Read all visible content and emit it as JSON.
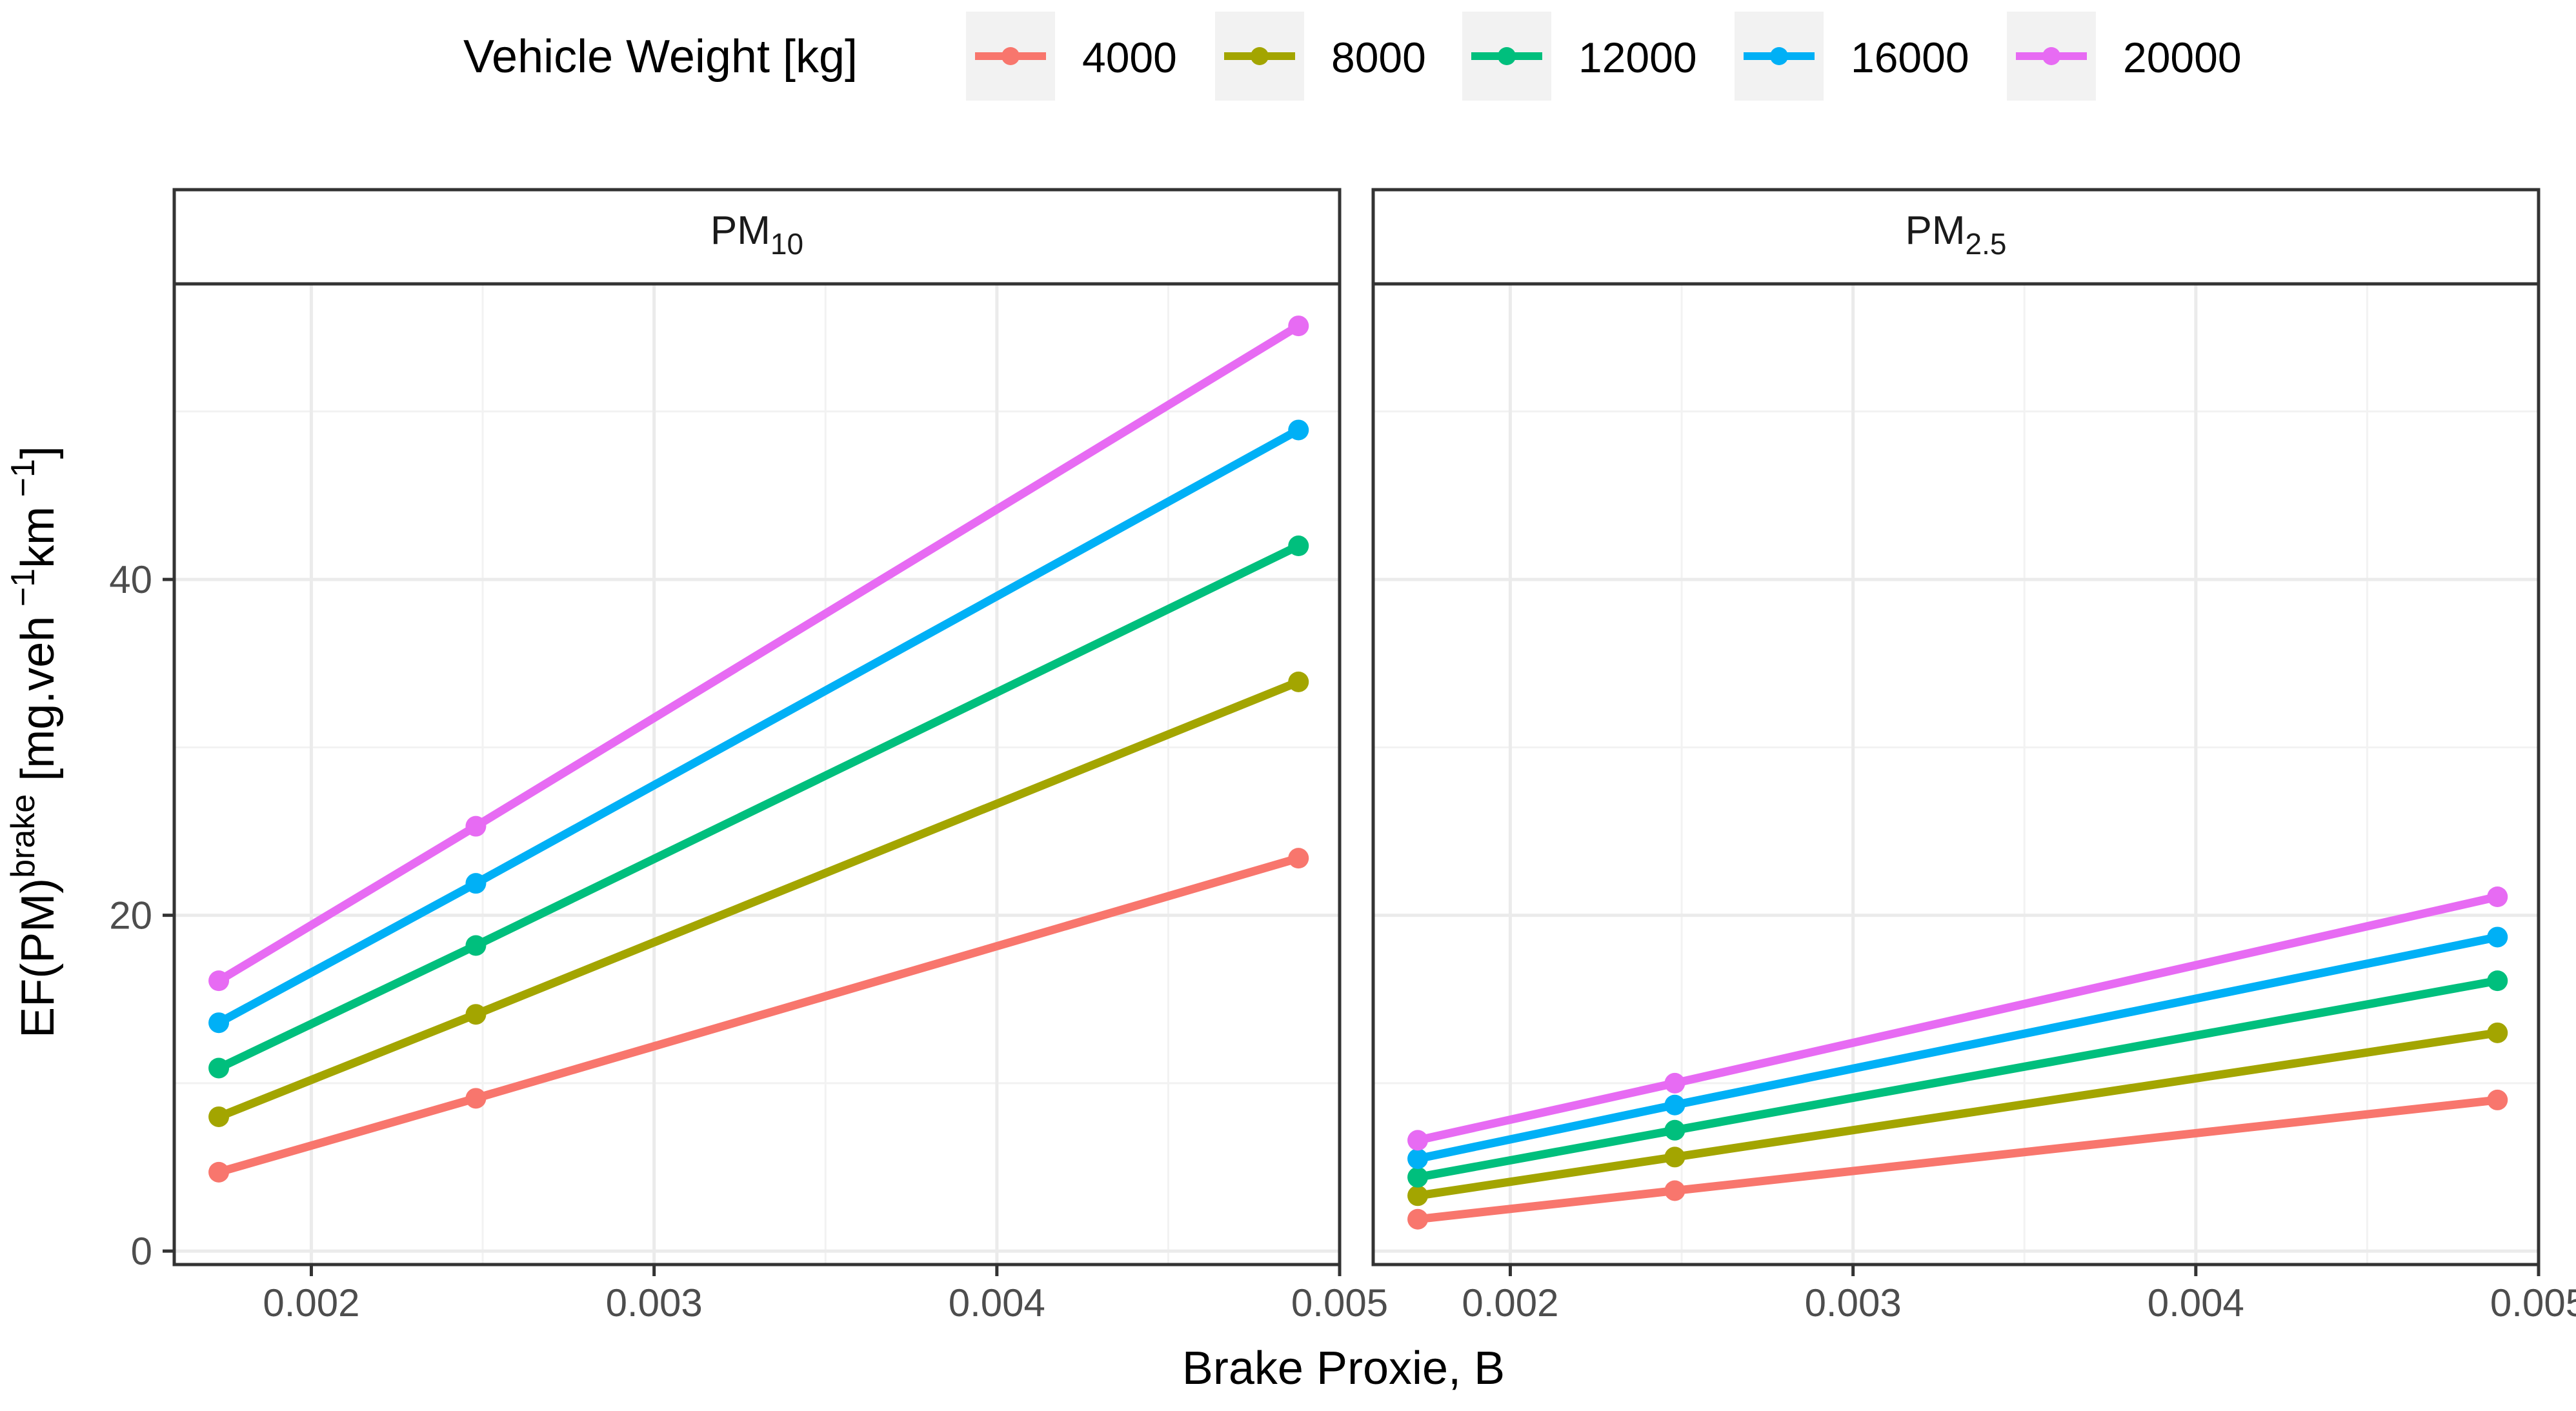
{
  "chart_data": {
    "type": "line",
    "xlabel": "Brake Proxie, B",
    "ylabel_main": "EF(PM)",
    "ylabel_sup": "brake",
    "ylabel_units_open": " [mg.veh",
    "ylabel_exp1": " −1",
    "ylabel_units_mid": "km",
    "ylabel_exp2": " −1",
    "ylabel_units_close": "]",
    "legend": {
      "title": "Vehicle Weight [kg]",
      "position": "top",
      "entries": [
        "4000",
        "8000",
        "12000",
        "16000",
        "20000"
      ]
    },
    "colors": [
      "#F8766D",
      "#A3A500",
      "#00BF7D",
      "#00B0F6",
      "#E76BF3"
    ],
    "x": [
      0.00173,
      0.00248,
      0.00488
    ],
    "xlim": [
      0.0016,
      0.005
    ],
    "xticks": [
      0.002,
      0.003,
      0.004,
      0.005
    ],
    "xtick_labels": [
      "0.002",
      "0.003",
      "0.004",
      "0.005"
    ],
    "ylim": [
      -0.8,
      57.6
    ],
    "yticks": [
      0,
      20,
      40
    ],
    "ytick_labels": [
      "0",
      "20",
      "40"
    ],
    "panels": [
      {
        "strip_main": "PM",
        "strip_sub": "10",
        "series": [
          {
            "name": "4000",
            "values": [
              4.7,
              9.1,
              23.4
            ]
          },
          {
            "name": "8000",
            "values": [
              8.0,
              14.1,
              33.9
            ]
          },
          {
            "name": "12000",
            "values": [
              10.9,
              18.2,
              42.0
            ]
          },
          {
            "name": "16000",
            "values": [
              13.6,
              21.9,
              48.9
            ]
          },
          {
            "name": "20000",
            "values": [
              16.1,
              25.3,
              55.1
            ]
          }
        ]
      },
      {
        "strip_main": "PM",
        "strip_sub": "2.5",
        "series": [
          {
            "name": "4000",
            "values": [
              1.9,
              3.6,
              9.0
            ]
          },
          {
            "name": "8000",
            "values": [
              3.3,
              5.6,
              13.0
            ]
          },
          {
            "name": "12000",
            "values": [
              4.4,
              7.2,
              16.1
            ]
          },
          {
            "name": "16000",
            "values": [
              5.5,
              8.7,
              18.7
            ]
          },
          {
            "name": "20000",
            "values": [
              6.6,
              10.0,
              21.1
            ]
          }
        ]
      }
    ]
  }
}
